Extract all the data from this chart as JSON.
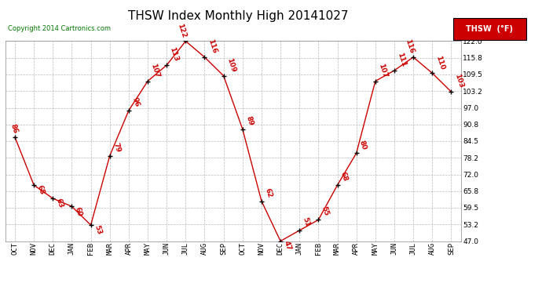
{
  "title": "THSW Index Monthly High 20141027",
  "copyright": "Copyright 2014 Cartronics.com",
  "legend_label": "THSW  (°F)",
  "months": [
    "OCT",
    "NOV",
    "DEC",
    "JAN",
    "FEB",
    "MAR",
    "APR",
    "MAY",
    "JUN",
    "JUL",
    "AUG",
    "SEP",
    "OCT",
    "NOV",
    "DEC",
    "JAN",
    "FEB",
    "MAR",
    "APR",
    "MAY",
    "JUN",
    "JUL",
    "AUG",
    "SEP"
  ],
  "values": [
    86,
    68,
    63,
    60,
    53,
    79,
    96,
    107,
    113,
    122,
    116,
    109,
    89,
    62,
    47,
    51,
    55,
    68,
    80,
    107,
    111,
    116,
    110,
    103
  ],
  "ylim": [
    47.0,
    122.0
  ],
  "yticks": [
    47.0,
    53.2,
    59.5,
    65.8,
    72.0,
    78.2,
    84.5,
    90.8,
    97.0,
    103.2,
    109.5,
    115.8,
    122.0
  ],
  "line_color": "#cc0000",
  "marker_color": "#000000",
  "label_color": "#cc0000",
  "bg_color": "#ffffff",
  "grid_color": "#aaaaaa",
  "title_fontsize": 11,
  "tick_fontsize": 6.5,
  "label_fontsize": 6.5,
  "legend_bg": "#cc0000",
  "legend_text_color": "#ffffff",
  "copyright_color": "#007700"
}
